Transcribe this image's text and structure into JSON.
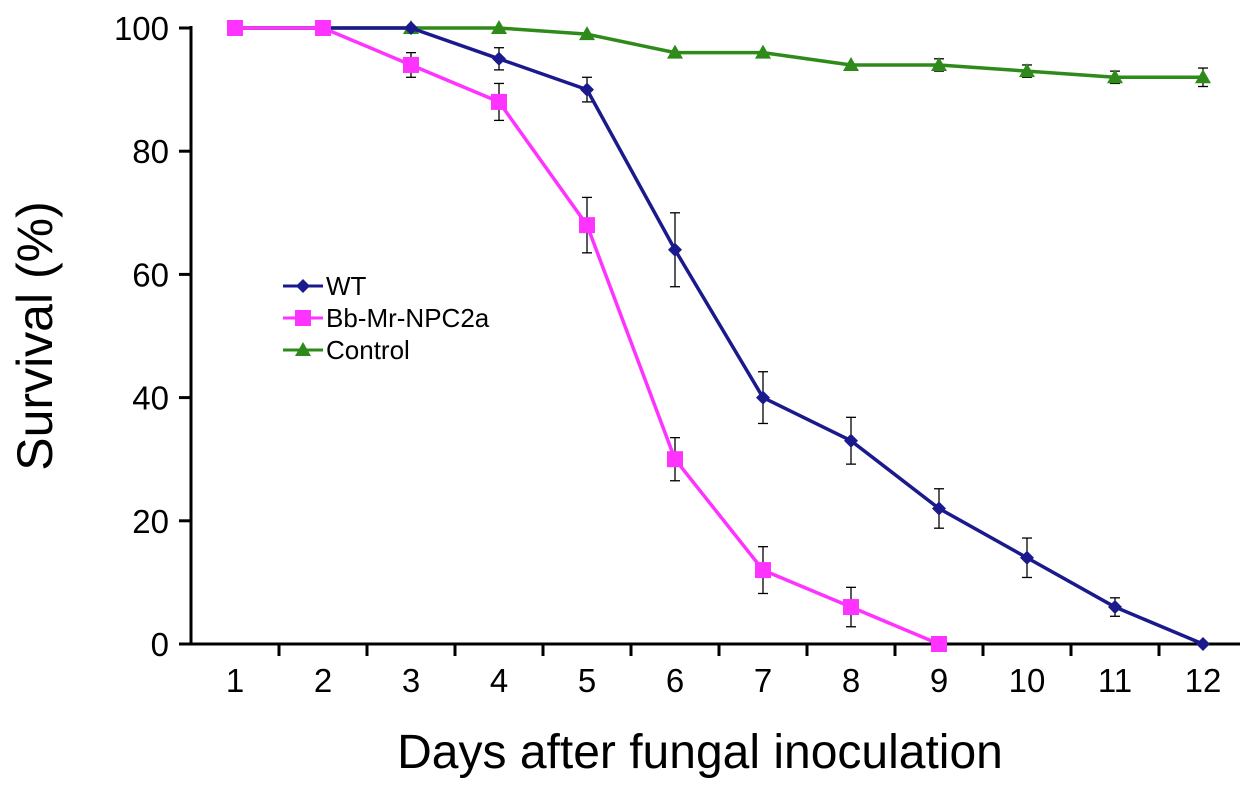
{
  "chart_data": {
    "type": "line",
    "title": "",
    "xlabel": "Days after fungal inoculation",
    "ylabel": "Survival (%)",
    "categories": [
      "1",
      "2",
      "3",
      "4",
      "5",
      "6",
      "7",
      "8",
      "9",
      "10",
      "11",
      "12"
    ],
    "ylim": [
      0,
      100
    ],
    "yticks": [
      0,
      20,
      40,
      60,
      80,
      100
    ],
    "grid": false,
    "legend_position": "center-left",
    "series": [
      {
        "name": "WT",
        "color": "#1a1a8c",
        "marker": "diamond",
        "values": [
          100,
          100,
          100,
          95,
          90,
          64,
          40,
          33,
          22,
          14,
          6,
          0
        ],
        "errors": [
          0,
          0,
          0,
          1.8,
          2,
          6,
          4.2,
          3.8,
          3.2,
          3.2,
          1.5,
          0
        ]
      },
      {
        "name": "Bb-Mr-NPC2a",
        "color": "#ff33ff",
        "marker": "square",
        "values": [
          100,
          100,
          94,
          88,
          68,
          30,
          12,
          6,
          0,
          null,
          null,
          null
        ],
        "errors": [
          0,
          0,
          2,
          3,
          4.5,
          3.5,
          3.8,
          3.2,
          0,
          null,
          null,
          null
        ]
      },
      {
        "name": "Control",
        "color": "#2e8b1a",
        "marker": "triangle",
        "values": [
          100,
          100,
          100,
          100,
          99,
          96,
          96,
          94,
          94,
          93,
          92,
          92
        ],
        "errors": [
          0,
          0,
          0,
          0,
          0,
          0,
          0,
          0,
          1,
          1,
          1,
          1.5
        ]
      }
    ]
  }
}
